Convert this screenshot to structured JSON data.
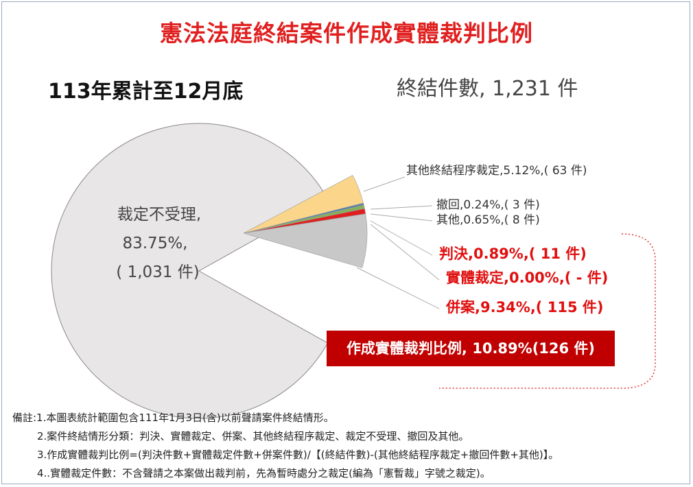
{
  "title": "憲法法庭終結案件作成實體裁判比例",
  "subtitle": "113年累計至12月底",
  "total_label": "終結件數, 1,231 件",
  "chart_data": {
    "type": "pie",
    "title": "憲法法庭終結案件作成實體裁判比例",
    "subtitle": "113年累計至12月底",
    "total": 1231,
    "slices": [
      {
        "name": "裁定不受理",
        "percent": 83.75,
        "count": 1031,
        "color": "#e8e6e6"
      },
      {
        "name": "其他終結程序裁定",
        "percent": 5.12,
        "count": 63,
        "color": "#fbd68a"
      },
      {
        "name": "撤回",
        "percent": 0.24,
        "count": 3,
        "color": "#4f7fb3"
      },
      {
        "name": "其他",
        "percent": 0.65,
        "count": 8,
        "color": "#86b05a"
      },
      {
        "name": "判決",
        "percent": 0.89,
        "count": 11,
        "color": "#e02020"
      },
      {
        "name": "實體裁定",
        "percent": 0.0,
        "count": null,
        "color": "#e02020"
      },
      {
        "name": "併案",
        "percent": 9.34,
        "count": 115,
        "color": "#c8c8c8"
      }
    ],
    "big_label": {
      "name": "裁定不受理,",
      "percent": "83.75%,",
      "count": "( 1,031 件)"
    },
    "labels": {
      "other_proc": "其他終結程序裁定,5.12%,( 63 件)",
      "withdraw": "撤回,0.24%,( 3 件)",
      "others": "其他,0.65%,( 8 件)",
      "judgment": "判決,0.89%,( 11 件)",
      "ruling": "實體裁定,0.00%,( - 件)",
      "merged": "併案,9.34%,( 115 件)"
    }
  },
  "ratio_box": "作成實體裁判比例, 10.89%(126 件)",
  "notes": [
    "備註:1.本圖表統計範圍包含111年1月3日(含)以前聲請案件終結情形。",
    "2.案件終結情形分類：判決、實體裁定、併案、其他終結程序裁定、裁定不受理、撤回及其他。",
    "3.作成實體裁判比例=(判決件數+實體裁定件數+併案件數)/【(終結件數)-(其他終結程序裁定+撤回件數+其他)】。",
    "4..實體裁定件數：不含聲請之本案做出裁判前，先為暫時處分之裁定(編為「憲暫裁」字號之裁定)。"
  ]
}
